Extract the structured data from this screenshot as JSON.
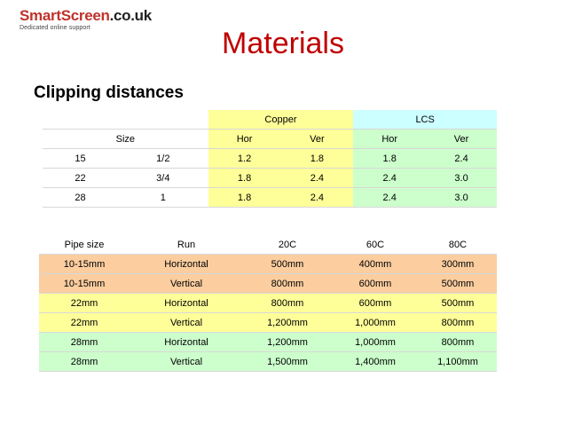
{
  "logo": {
    "name_part1": "Smart",
    "name_part2": "Screen",
    "name_part3": ".co.uk",
    "tagline": "Dedicated online support"
  },
  "title": "Materials",
  "subtitle": "Clipping distances",
  "table1": {
    "group_headers": [
      "Copper",
      "LCS"
    ],
    "sub_headers": [
      "Size",
      "Hor",
      "Ver",
      "Hor",
      "Ver"
    ],
    "rows": [
      [
        "15",
        "1/2",
        "1.2",
        "1.8",
        "1.8",
        "2.4"
      ],
      [
        "22",
        "3/4",
        "1.8",
        "2.4",
        "2.4",
        "3.0"
      ],
      [
        "28",
        "1",
        "1.8",
        "2.4",
        "2.4",
        "3.0"
      ]
    ]
  },
  "table2": {
    "headers": [
      "Pipe size",
      "Run",
      "20C",
      "60C",
      "80C"
    ],
    "rows": [
      [
        "10-15mm",
        "Horizontal",
        "500mm",
        "400mm",
        "300mm"
      ],
      [
        "10-15mm",
        "Vertical",
        "800mm",
        "600mm",
        "500mm"
      ],
      [
        "22mm",
        "Horizontal",
        "800mm",
        "600mm",
        "500mm"
      ],
      [
        "22mm",
        "Vertical",
        "1,200mm",
        "1,000mm",
        "800mm"
      ],
      [
        "28mm",
        "Horizontal",
        "1,200mm",
        "1,000mm",
        "800mm"
      ],
      [
        "28mm",
        "Vertical",
        "1,500mm",
        "1,400mm",
        "1,100mm"
      ]
    ],
    "row_colors": [
      "#fbcd9f",
      "#fbcd9f",
      "#ffff99",
      "#ffff99",
      "#ccffcc",
      "#ccffcc"
    ]
  }
}
